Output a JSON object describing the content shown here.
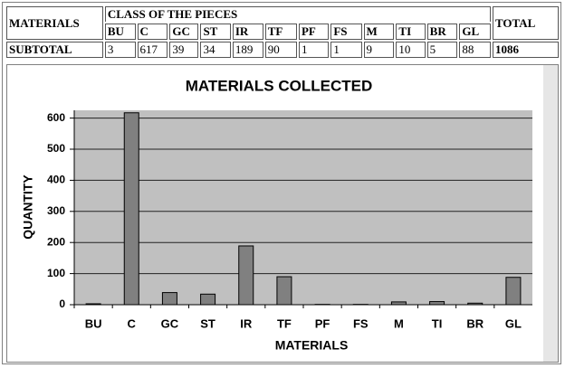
{
  "table": {
    "header": {
      "materials": "MATERIALS",
      "class": "CLASS OF THE PIECES",
      "total": "TOTAL"
    },
    "classes": [
      "BU",
      "C",
      "GC",
      "ST",
      "IR",
      "TF",
      "PF",
      "FS",
      "M",
      "TI",
      "BR",
      "GL"
    ],
    "row": {
      "label": "SUBTOTAL",
      "values": [
        3,
        617,
        39,
        34,
        189,
        90,
        1,
        1,
        9,
        10,
        5,
        88
      ],
      "total": 1086
    }
  },
  "chart_data": {
    "type": "bar",
    "title": "MATERIALS COLLECTED",
    "x_label": "MATERIALS",
    "y_label": "QUANTITY",
    "categories": [
      "BU",
      "C",
      "GC",
      "ST",
      "IR",
      "TF",
      "PF",
      "FS",
      "M",
      "TI",
      "BR",
      "GL"
    ],
    "values": [
      3,
      617,
      39,
      34,
      189,
      90,
      1,
      1,
      9,
      10,
      5,
      88
    ],
    "color": "#808080",
    "plot_background": "#c0c0c0",
    "ylim": [
      0,
      625
    ],
    "yticks": [
      0,
      100,
      200,
      300,
      400,
      500,
      600
    ],
    "grid": true
  }
}
